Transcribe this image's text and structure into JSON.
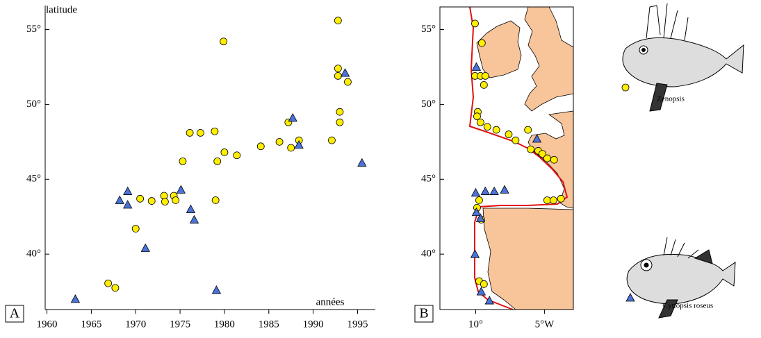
{
  "chart_data": [
    {
      "type": "scatter",
      "panel_label": "A",
      "x_label": "années",
      "y_label": "latitude",
      "xlim": [
        1959.8,
        1997
      ],
      "ylim": [
        36.3,
        56.6
      ],
      "xticks": [
        1960,
        1965,
        1970,
        1975,
        1980,
        1985,
        1990,
        1995
      ],
      "yticks": [
        {
          "value": 40,
          "label": "40°"
        },
        {
          "value": 45,
          "label": "45°"
        },
        {
          "value": 50,
          "label": "50°"
        },
        {
          "value": 55,
          "label": "55°"
        }
      ],
      "series": [
        {
          "name": "Zenopsis",
          "color": "#ffee00",
          "marker": "circle",
          "x": [
            1966.9,
            1967.7,
            1970.0,
            1970.5,
            1971.8,
            1973.2,
            1973.3,
            1974.3,
            1974.5,
            1975.3,
            1976.1,
            1977.3,
            1978.9,
            1979.2,
            1979.0,
            1980.0,
            1981.4,
            1984.1,
            1986.2,
            1987.2,
            1987.5,
            1988.4,
            1992.1,
            1993.0,
            1993.0,
            1992.8,
            1992.8,
            1993.9,
            1992.8,
            1979.9
          ],
          "values": [
            38.05,
            37.75,
            41.7,
            43.7,
            43.55,
            43.9,
            43.5,
            43.9,
            43.6,
            46.2,
            48.1,
            48.1,
            48.2,
            46.2,
            43.6,
            46.8,
            46.6,
            47.2,
            47.5,
            48.8,
            47.1,
            47.6,
            47.6,
            48.8,
            49.5,
            51.9,
            52.4,
            51.5,
            55.6,
            54.2
          ]
        },
        {
          "name": "Cyttopsis roseus",
          "color": "#4a72d8",
          "marker": "triangle",
          "x": [
            1963.2,
            1968.2,
            1969.1,
            1969.1,
            1971.1,
            1975.1,
            1976.2,
            1976.6,
            1979.1,
            1987.7,
            1988.4,
            1993.6,
            1995.5
          ],
          "values": [
            37.0,
            43.6,
            44.2,
            43.3,
            40.4,
            44.3,
            43.0,
            42.3,
            37.6,
            49.1,
            47.3,
            52.1,
            46.1
          ]
        }
      ]
    },
    {
      "type": "map",
      "panel_label": "B",
      "xlim": [
        -12.6,
        -2.9
      ],
      "ylim": [
        36.3,
        56.6
      ],
      "xticks": [
        {
          "value": -10,
          "label": "10°"
        },
        {
          "value": -5,
          "label": "5°W"
        }
      ],
      "yticks": [
        {
          "value": 40,
          "label": "40°"
        },
        {
          "value": 45,
          "label": "45°"
        },
        {
          "value": 50,
          "label": "50°"
        },
        {
          "value": 55,
          "label": "55°"
        }
      ],
      "series": [
        {
          "color": "#ffee00",
          "marker": "circle",
          "x": [
            -10.05,
            -9.55,
            -10.05,
            -9.65,
            -9.3,
            -9.4,
            -9.85,
            -9.9,
            -9.65,
            -9.15,
            -8.5,
            -7.6,
            -7.1,
            -6.2,
            -6.0,
            -5.45,
            -5.15,
            -4.8,
            -4.3,
            -4.8,
            -4.35,
            -3.8,
            -9.75,
            -9.9,
            -9.6,
            -9.75,
            -9.4
          ],
          "values": [
            55.4,
            54.1,
            51.9,
            51.9,
            51.9,
            51.3,
            49.5,
            49.2,
            48.8,
            48.5,
            48.3,
            48.0,
            47.6,
            48.3,
            47.0,
            46.9,
            46.7,
            46.4,
            46.3,
            43.6,
            43.6,
            43.7,
            43.6,
            43.1,
            42.3,
            38.2,
            38.0
          ]
        },
        {
          "color": "#4a72d8",
          "marker": "triangle",
          "x": [
            -9.95,
            -5.55,
            -10.0,
            -9.3,
            -8.65,
            -7.9,
            -9.95,
            -9.65,
            -10.05,
            -9.6,
            -9.0
          ],
          "values": [
            52.5,
            47.7,
            44.1,
            44.2,
            44.2,
            44.3,
            42.8,
            42.4,
            40.0,
            37.5,
            36.9
          ]
        }
      ]
    }
  ]
}
